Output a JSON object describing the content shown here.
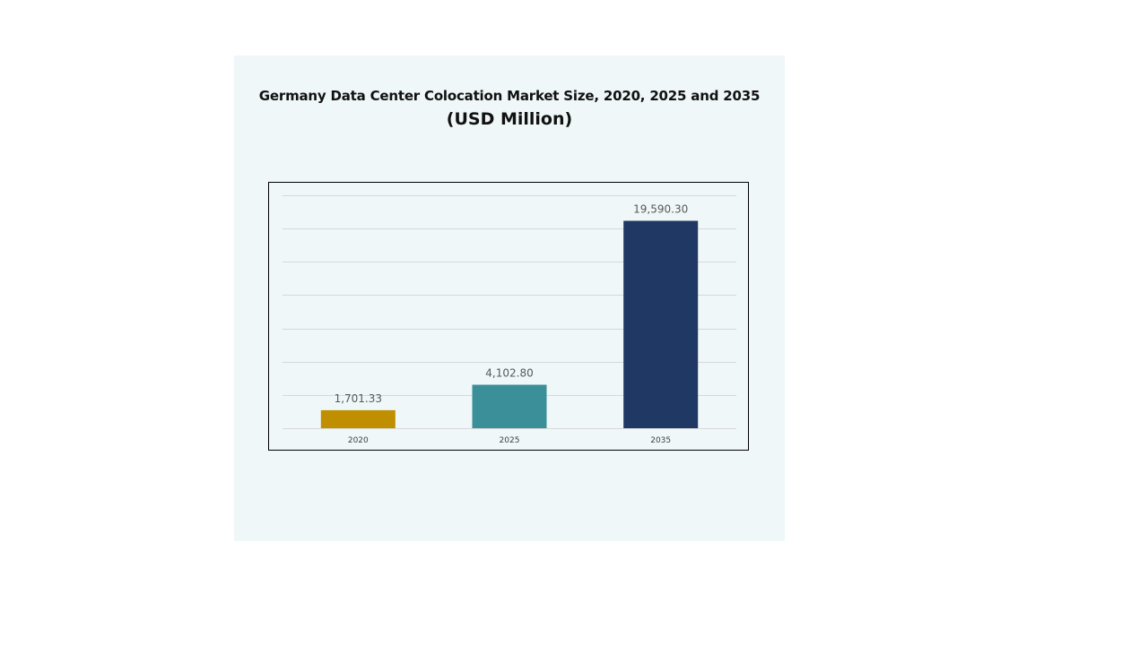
{
  "chart_data": {
    "type": "bar",
    "title": "Germany Data Center Colocation Market Size, 2020, 2025 and 2035",
    "subtitle": "(USD Million)",
    "categories": [
      "2020",
      "2025",
      "2035"
    ],
    "values": [
      1701.33,
      4102.8,
      19590.3
    ],
    "value_labels": [
      "1,701.33",
      "4,102.80",
      "19,590.30"
    ],
    "bar_colors": [
      "#bf8f00",
      "#3a8f98",
      "#1f3864"
    ],
    "ylim": [
      0,
      22000
    ],
    "grid": true,
    "gridline_count": 7,
    "xlabel": "",
    "ylabel": ""
  }
}
